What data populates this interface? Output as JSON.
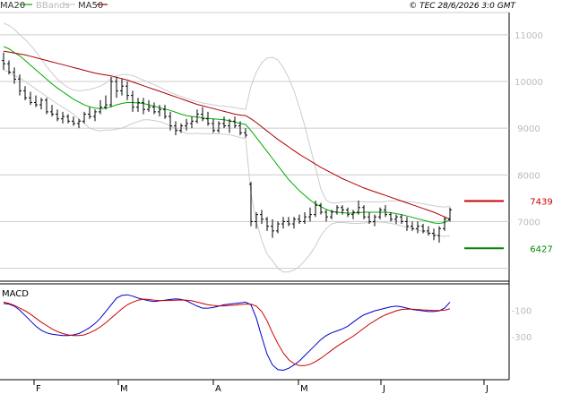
{
  "chart_data": {
    "type": "line",
    "credit": "© TEC 28/6/2026 3:0 GMT",
    "legend": [
      {
        "label": "MA20",
        "color": "#00aa00"
      },
      {
        "label": "BBands",
        "color": "#cccccc"
      },
      {
        "label": "MA50",
        "color": "#aa0000"
      }
    ],
    "x_ticks": [
      "F",
      "M",
      "A",
      "M",
      "J",
      "J"
    ],
    "price_panel": {
      "y_ticks": [
        "11000",
        "10000",
        "9000",
        "8000",
        "7000"
      ],
      "ylim": [
        5800,
        11400
      ],
      "grid": true,
      "annotations": [
        {
          "label": "7439",
          "value": 7439,
          "color": "#cc0000"
        },
        {
          "label": "6427",
          "value": 6427,
          "color": "#008800"
        }
      ],
      "price_bars": [
        [
          10450,
          10620,
          10250,
          10380
        ],
        [
          10380,
          10450,
          10150,
          10200
        ],
        [
          10200,
          10300,
          9950,
          10050
        ],
        [
          10050,
          10150,
          9700,
          9800
        ],
        [
          9800,
          9900,
          9600,
          9650
        ],
        [
          9650,
          9780,
          9500,
          9550
        ],
        [
          9550,
          9700,
          9450,
          9500
        ],
        [
          9500,
          9650,
          9400,
          9600
        ],
        [
          9600,
          9650,
          9300,
          9350
        ],
        [
          9350,
          9500,
          9250,
          9300
        ],
        [
          9300,
          9400,
          9150,
          9200
        ],
        [
          9200,
          9350,
          9100,
          9250
        ],
        [
          9250,
          9300,
          9100,
          9150
        ],
        [
          9150,
          9250,
          9050,
          9100
        ],
        [
          9100,
          9200,
          9000,
          9150
        ],
        [
          9150,
          9350,
          9100,
          9300
        ],
        [
          9300,
          9450,
          9200,
          9250
        ],
        [
          9250,
          9400,
          9150,
          9350
        ],
        [
          9350,
          9600,
          9300,
          9450
        ],
        [
          9450,
          9700,
          9400,
          9500
        ],
        [
          9500,
          10100,
          9450,
          10000
        ],
        [
          10000,
          10100,
          9650,
          9800
        ],
        [
          9800,
          10050,
          9700,
          9900
        ],
        [
          9900,
          10000,
          9600,
          9700
        ],
        [
          9700,
          9800,
          9350,
          9450
        ],
        [
          9450,
          9650,
          9350,
          9550
        ],
        [
          9550,
          9650,
          9300,
          9400
        ],
        [
          9400,
          9600,
          9350,
          9450
        ],
        [
          9450,
          9550,
          9300,
          9350
        ],
        [
          9350,
          9500,
          9250,
          9400
        ],
        [
          9400,
          9500,
          9200,
          9250
        ],
        [
          9250,
          9350,
          8950,
          9050
        ],
        [
          9050,
          9150,
          8850,
          8950
        ],
        [
          8950,
          9100,
          8900,
          9050
        ],
        [
          9050,
          9200,
          8950,
          9100
        ],
        [
          9100,
          9250,
          9000,
          9150
        ],
        [
          9150,
          9400,
          9100,
          9300
        ],
        [
          9300,
          9450,
          9150,
          9200
        ],
        [
          9200,
          9350,
          9050,
          9100
        ],
        [
          9100,
          9200,
          8900,
          8950
        ],
        [
          8950,
          9150,
          8900,
          9100
        ],
        [
          9100,
          9250,
          9000,
          9050
        ],
        [
          9050,
          9200,
          8900,
          9150
        ],
        [
          9150,
          9250,
          9000,
          9050
        ],
        [
          9050,
          9150,
          8850,
          8900
        ],
        [
          8900,
          9000,
          8800,
          8850
        ],
        [
          7800,
          7850,
          6900,
          7000
        ],
        [
          7000,
          7200,
          6850,
          7150
        ],
        [
          7150,
          7250,
          6950,
          7050
        ],
        [
          7050,
          7100,
          6800,
          6900
        ],
        [
          6900,
          7050,
          6650,
          6800
        ],
        [
          6800,
          7000,
          6750,
          6950
        ],
        [
          6950,
          7100,
          6850,
          7000
        ],
        [
          7000,
          7100,
          6900,
          6950
        ],
        [
          6950,
          7100,
          6850,
          7050
        ],
        [
          7050,
          7150,
          6950,
          7000
        ],
        [
          7000,
          7200,
          6950,
          7100
        ],
        [
          7100,
          7300,
          7000,
          7150
        ],
        [
          7150,
          7450,
          7100,
          7350
        ],
        [
          7350,
          7400,
          7150,
          7200
        ],
        [
          7200,
          7250,
          7000,
          7100
        ],
        [
          7100,
          7250,
          7050,
          7200
        ],
        [
          7200,
          7350,
          7150,
          7300
        ],
        [
          7300,
          7350,
          7150,
          7250
        ],
        [
          7250,
          7300,
          7100,
          7150
        ],
        [
          7150,
          7250,
          7050,
          7200
        ],
        [
          7200,
          7450,
          7150,
          7300
        ],
        [
          7300,
          7350,
          7050,
          7100
        ],
        [
          7100,
          7200,
          6950,
          7000
        ],
        [
          7000,
          7150,
          6900,
          7100
        ],
        [
          7100,
          7300,
          7050,
          7250
        ],
        [
          7250,
          7350,
          7100,
          7150
        ],
        [
          7150,
          7200,
          7000,
          7050
        ],
        [
          7050,
          7150,
          6950,
          7100
        ],
        [
          7100,
          7150,
          6950,
          7000
        ],
        [
          7000,
          7100,
          6800,
          6900
        ],
        [
          6900,
          7000,
          6800,
          6850
        ],
        [
          6850,
          7000,
          6750,
          6900
        ],
        [
          6900,
          6950,
          6750,
          6800
        ],
        [
          6800,
          6900,
          6700,
          6750
        ],
        [
          6750,
          6850,
          6600,
          6700
        ],
        [
          6700,
          6900,
          6550,
          6850
        ],
        [
          6850,
          7100,
          6800,
          7050
        ],
        [
          7050,
          7300,
          7000,
          7250
        ]
      ],
      "series": [
        {
          "name": "MA20",
          "color": "#00aa00",
          "values": [
            10750,
            10700,
            10620,
            10550,
            10450,
            10350,
            10250,
            10150,
            10050,
            9950,
            9860,
            9780,
            9700,
            9620,
            9560,
            9500,
            9460,
            9430,
            9420,
            9430,
            9460,
            9500,
            9530,
            9550,
            9550,
            9540,
            9530,
            9500,
            9470,
            9440,
            9410,
            9380,
            9340,
            9300,
            9270,
            9250,
            9240,
            9220,
            9210,
            9200,
            9190,
            9180,
            9160,
            9130,
            9100,
            9080,
            8950,
            8800,
            8650,
            8500,
            8350,
            8200,
            8050,
            7900,
            7780,
            7660,
            7560,
            7460,
            7380,
            7320,
            7260,
            7220,
            7200,
            7190,
            7180,
            7180,
            7190,
            7200,
            7200,
            7200,
            7200,
            7200,
            7190,
            7170,
            7150,
            7120,
            7090,
            7060,
            7030,
            7000,
            6970,
            6960,
            6980,
            7040
          ]
        },
        {
          "name": "MA50",
          "color": "#aa0000",
          "values": [
            10650,
            10630,
            10610,
            10590,
            10570,
            10540,
            10510,
            10480,
            10450,
            10420,
            10390,
            10360,
            10330,
            10300,
            10270,
            10240,
            10210,
            10180,
            10160,
            10140,
            10120,
            10090,
            10060,
            10030,
            9990,
            9950,
            9910,
            9870,
            9830,
            9790,
            9750,
            9710,
            9670,
            9630,
            9590,
            9550,
            9510,
            9480,
            9450,
            9420,
            9390,
            9360,
            9330,
            9300,
            9280,
            9270,
            9200,
            9120,
            9030,
            8940,
            8850,
            8760,
            8680,
            8600,
            8520,
            8440,
            8370,
            8300,
            8230,
            8160,
            8100,
            8040,
            7980,
            7920,
            7870,
            7820,
            7770,
            7720,
            7680,
            7640,
            7600,
            7560,
            7520,
            7480,
            7440,
            7400,
            7360,
            7320,
            7280,
            7240,
            7200,
            7150,
            7100,
            7050
          ]
        },
        {
          "name": "BB upper",
          "color": "#cccccc",
          "values": [
            11250,
            11200,
            11120,
            11000,
            10900,
            10780,
            10640,
            10480,
            10320,
            10180,
            10050,
            9950,
            9870,
            9820,
            9800,
            9810,
            9830,
            9860,
            9900,
            9960,
            10060,
            10120,
            10150,
            10150,
            10120,
            10080,
            10030,
            9980,
            9930,
            9880,
            9820,
            9770,
            9720,
            9680,
            9640,
            9600,
            9570,
            9540,
            9520,
            9500,
            9480,
            9470,
            9460,
            9440,
            9420,
            9400,
            9900,
            10200,
            10400,
            10500,
            10520,
            10460,
            10300,
            10080,
            9800,
            9450,
            9050,
            8600,
            8150,
            7700,
            7450,
            7400,
            7400,
            7420,
            7430,
            7430,
            7430,
            7420,
            7420,
            7420,
            7420,
            7430,
            7440,
            7440,
            7440,
            7430,
            7420,
            7400,
            7380,
            7360,
            7340,
            7320,
            7310,
            7330
          ]
        },
        {
          "name": "BB lower",
          "color": "#cccccc",
          "values": [
            10250,
            10200,
            10120,
            10080,
            10000,
            9920,
            9840,
            9760,
            9680,
            9600,
            9520,
            9450,
            9380,
            9300,
            9200,
            9100,
            9000,
            8960,
            8940,
            8960,
            8960,
            8980,
            9000,
            9050,
            9100,
            9140,
            9180,
            9180,
            9160,
            9140,
            9100,
            9050,
            8990,
            8930,
            8890,
            8880,
            8890,
            8880,
            8880,
            8880,
            8880,
            8870,
            8860,
            8830,
            8800,
            8780,
            7600,
            7000,
            6600,
            6300,
            6160,
            6000,
            5920,
            5920,
            5960,
            6040,
            6160,
            6300,
            6480,
            6700,
            6850,
            6950,
            6980,
            6980,
            6970,
            6960,
            6960,
            6970,
            6980,
            6990,
            6990,
            6980,
            6960,
            6940,
            6910,
            6880,
            6850,
            6820,
            6790,
            6760,
            6730,
            6700,
            6680,
            6700
          ]
        }
      ]
    },
    "macd_panel": {
      "title": "MACD",
      "y_ticks": [
        "-100",
        "-300"
      ],
      "ylim": [
        -620,
        90
      ],
      "series": [
        {
          "name": "MACD",
          "color": "#0000cc",
          "values": [
            -50,
            -55,
            -70,
            -100,
            -140,
            -180,
            -220,
            -250,
            -270,
            -280,
            -285,
            -290,
            -290,
            -285,
            -275,
            -255,
            -230,
            -200,
            -160,
            -110,
            -60,
            -10,
            10,
            15,
            5,
            -10,
            -20,
            -30,
            -35,
            -30,
            -25,
            -20,
            -15,
            -20,
            -30,
            -50,
            -70,
            -85,
            -85,
            -80,
            -70,
            -60,
            -55,
            -50,
            -45,
            -40,
            -60,
            -160,
            -300,
            -430,
            -510,
            -545,
            -550,
            -535,
            -510,
            -480,
            -440,
            -400,
            -360,
            -320,
            -290,
            -270,
            -255,
            -240,
            -220,
            -190,
            -160,
            -135,
            -120,
            -105,
            -95,
            -85,
            -75,
            -70,
            -75,
            -85,
            -95,
            -100,
            -105,
            -110,
            -110,
            -105,
            -85,
            -40
          ]
        },
        {
          "name": "Signal",
          "color": "#cc0000",
          "values": [
            -40,
            -50,
            -65,
            -85,
            -105,
            -130,
            -160,
            -190,
            -215,
            -240,
            -260,
            -275,
            -285,
            -290,
            -290,
            -285,
            -270,
            -250,
            -225,
            -195,
            -160,
            -125,
            -90,
            -60,
            -40,
            -25,
            -18,
            -20,
            -25,
            -28,
            -28,
            -27,
            -25,
            -24,
            -25,
            -30,
            -40,
            -50,
            -60,
            -65,
            -68,
            -68,
            -65,
            -62,
            -58,
            -55,
            -55,
            -70,
            -110,
            -180,
            -270,
            -350,
            -420,
            -470,
            -500,
            -515,
            -515,
            -505,
            -485,
            -460,
            -430,
            -400,
            -370,
            -345,
            -320,
            -295,
            -265,
            -235,
            -205,
            -180,
            -155,
            -135,
            -120,
            -105,
            -95,
            -92,
            -92,
            -95,
            -98,
            -100,
            -102,
            -103,
            -100,
            -90
          ]
        }
      ]
    }
  }
}
